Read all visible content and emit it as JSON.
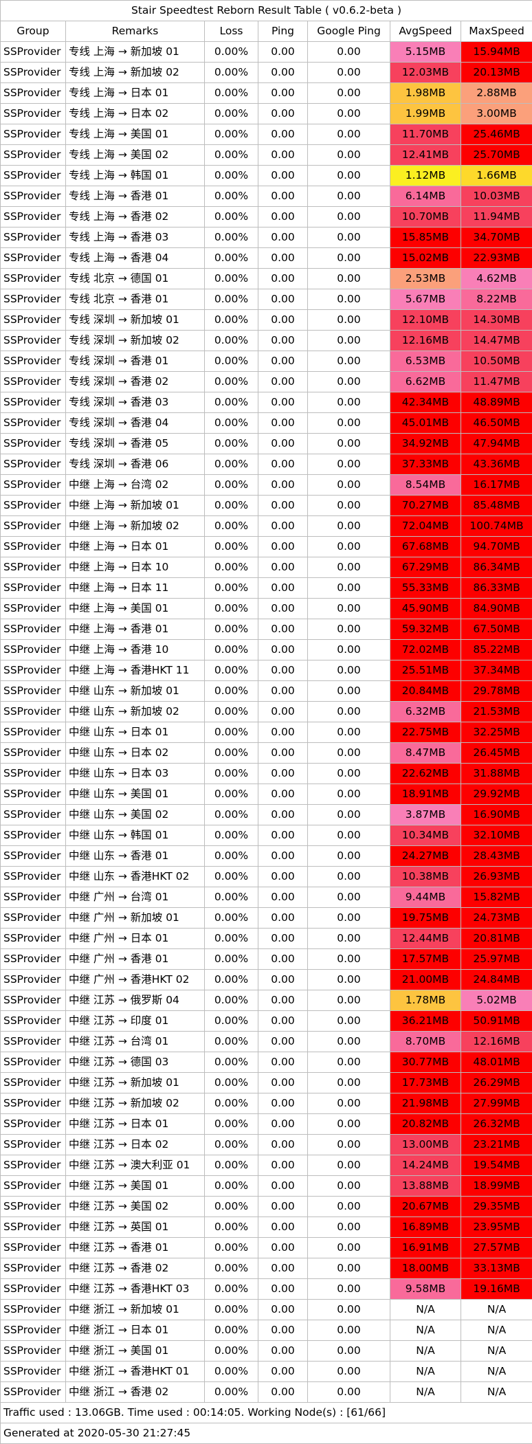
{
  "title": "Stair Speedtest Reborn Result Table ( v0.6.2-beta )",
  "headers": [
    "Group",
    "Remarks",
    "Loss",
    "Ping",
    "Google Ping",
    "AvgSpeed",
    "MaxSpeed"
  ],
  "rows": [
    {
      "group": "SSProvider",
      "remarks": "专线 上海 → 新加坡 01",
      "loss": "0.00%",
      "ping": "0.00",
      "gping": "0.00",
      "avg": "5.15MB",
      "max": "15.94MB",
      "avg_color": "#f97fb7",
      "max_color": "#fd0000"
    },
    {
      "group": "SSProvider",
      "remarks": "专线 上海 → 新加坡 02",
      "loss": "0.00%",
      "ping": "0.00",
      "gping": "0.00",
      "avg": "12.03MB",
      "max": "20.13MB",
      "avg_color": "#f7415d",
      "max_color": "#fd0000"
    },
    {
      "group": "SSProvider",
      "remarks": "专线 上海 → 日本 01",
      "loss": "0.00%",
      "ping": "0.00",
      "gping": "0.00",
      "avg": "1.98MB",
      "max": "2.88MB",
      "avg_color": "#fdc440",
      "max_color": "#fba07b"
    },
    {
      "group": "SSProvider",
      "remarks": "专线 上海 → 日本 02",
      "loss": "0.00%",
      "ping": "0.00",
      "gping": "0.00",
      "avg": "1.99MB",
      "max": "3.00MB",
      "avg_color": "#fdc440",
      "max_color": "#fba07b"
    },
    {
      "group": "SSProvider",
      "remarks": "专线 上海 → 美国 01",
      "loss": "0.00%",
      "ping": "0.00",
      "gping": "0.00",
      "avg": "11.70MB",
      "max": "25.46MB",
      "avg_color": "#f7415d",
      "max_color": "#fd0000"
    },
    {
      "group": "SSProvider",
      "remarks": "专线 上海 → 美国 02",
      "loss": "0.00%",
      "ping": "0.00",
      "gping": "0.00",
      "avg": "12.41MB",
      "max": "25.70MB",
      "avg_color": "#f7415d",
      "max_color": "#fd0000"
    },
    {
      "group": "SSProvider",
      "remarks": "专线 上海 → 韩国 01",
      "loss": "0.00%",
      "ping": "0.00",
      "gping": "0.00",
      "avg": "1.12MB",
      "max": "1.66MB",
      "avg_color": "#fbef21",
      "max_color": "#fdd92b"
    },
    {
      "group": "SSProvider",
      "remarks": "专线 上海 → 香港 01",
      "loss": "0.00%",
      "ping": "0.00",
      "gping": "0.00",
      "avg": "6.14MB",
      "max": "10.03MB",
      "avg_color": "#f96a9a",
      "max_color": "#f7415d"
    },
    {
      "group": "SSProvider",
      "remarks": "专线 上海 → 香港 02",
      "loss": "0.00%",
      "ping": "0.00",
      "gping": "0.00",
      "avg": "10.70MB",
      "max": "11.94MB",
      "avg_color": "#f7415d",
      "max_color": "#f7415d"
    },
    {
      "group": "SSProvider",
      "remarks": "专线 上海 → 香港 03",
      "loss": "0.00%",
      "ping": "0.00",
      "gping": "0.00",
      "avg": "15.85MB",
      "max": "34.70MB",
      "avg_color": "#fd0000",
      "max_color": "#fd0000"
    },
    {
      "group": "SSProvider",
      "remarks": "专线 上海 → 香港 04",
      "loss": "0.00%",
      "ping": "0.00",
      "gping": "0.00",
      "avg": "15.02MB",
      "max": "22.93MB",
      "avg_color": "#fd0000",
      "max_color": "#fd0000"
    },
    {
      "group": "SSProvider",
      "remarks": "专线 北京 → 德国 01",
      "loss": "0.00%",
      "ping": "0.00",
      "gping": "0.00",
      "avg": "2.53MB",
      "max": "4.62MB",
      "avg_color": "#fba07b",
      "max_color": "#f97fb7"
    },
    {
      "group": "SSProvider",
      "remarks": "专线 北京 → 香港 01",
      "loss": "0.00%",
      "ping": "0.00",
      "gping": "0.00",
      "avg": "5.67MB",
      "max": "8.22MB",
      "avg_color": "#f97fb7",
      "max_color": "#f96a9a"
    },
    {
      "group": "SSProvider",
      "remarks": "专线 深圳 → 新加坡 01",
      "loss": "0.00%",
      "ping": "0.00",
      "gping": "0.00",
      "avg": "12.10MB",
      "max": "14.30MB",
      "avg_color": "#f7415d",
      "max_color": "#f7415d"
    },
    {
      "group": "SSProvider",
      "remarks": "专线 深圳 → 新加坡 02",
      "loss": "0.00%",
      "ping": "0.00",
      "gping": "0.00",
      "avg": "12.16MB",
      "max": "14.47MB",
      "avg_color": "#f7415d",
      "max_color": "#f7415d"
    },
    {
      "group": "SSProvider",
      "remarks": "专线 深圳 → 香港 01",
      "loss": "0.00%",
      "ping": "0.00",
      "gping": "0.00",
      "avg": "6.53MB",
      "max": "10.50MB",
      "avg_color": "#f96a9a",
      "max_color": "#f7415d"
    },
    {
      "group": "SSProvider",
      "remarks": "专线 深圳 → 香港 02",
      "loss": "0.00%",
      "ping": "0.00",
      "gping": "0.00",
      "avg": "6.62MB",
      "max": "11.47MB",
      "avg_color": "#f96a9a",
      "max_color": "#f7415d"
    },
    {
      "group": "SSProvider",
      "remarks": "专线 深圳 → 香港 03",
      "loss": "0.00%",
      "ping": "0.00",
      "gping": "0.00",
      "avg": "42.34MB",
      "max": "48.89MB",
      "avg_color": "#fd0000",
      "max_color": "#fd0000"
    },
    {
      "group": "SSProvider",
      "remarks": "专线 深圳 → 香港 04",
      "loss": "0.00%",
      "ping": "0.00",
      "gping": "0.00",
      "avg": "45.01MB",
      "max": "46.50MB",
      "avg_color": "#fd0000",
      "max_color": "#fd0000"
    },
    {
      "group": "SSProvider",
      "remarks": "专线 深圳 → 香港 05",
      "loss": "0.00%",
      "ping": "0.00",
      "gping": "0.00",
      "avg": "34.92MB",
      "max": "47.94MB",
      "avg_color": "#fd0000",
      "max_color": "#fd0000"
    },
    {
      "group": "SSProvider",
      "remarks": "专线 深圳 → 香港 06",
      "loss": "0.00%",
      "ping": "0.00",
      "gping": "0.00",
      "avg": "37.33MB",
      "max": "43.36MB",
      "avg_color": "#fd0000",
      "max_color": "#fd0000"
    },
    {
      "group": "SSProvider",
      "remarks": "中继 上海 → 台湾 02",
      "loss": "0.00%",
      "ping": "0.00",
      "gping": "0.00",
      "avg": "8.54MB",
      "max": "16.17MB",
      "avg_color": "#f96a9a",
      "max_color": "#fd0000"
    },
    {
      "group": "SSProvider",
      "remarks": "中继 上海 → 新加坡 01",
      "loss": "0.00%",
      "ping": "0.00",
      "gping": "0.00",
      "avg": "70.27MB",
      "max": "85.48MB",
      "avg_color": "#fd0000",
      "max_color": "#fd0000"
    },
    {
      "group": "SSProvider",
      "remarks": "中继 上海 → 新加坡 02",
      "loss": "0.00%",
      "ping": "0.00",
      "gping": "0.00",
      "avg": "72.04MB",
      "max": "100.74MB",
      "avg_color": "#fd0000",
      "max_color": "#fd0000"
    },
    {
      "group": "SSProvider",
      "remarks": "中继 上海 → 日本 01",
      "loss": "0.00%",
      "ping": "0.00",
      "gping": "0.00",
      "avg": "67.68MB",
      "max": "94.70MB",
      "avg_color": "#fd0000",
      "max_color": "#fd0000"
    },
    {
      "group": "SSProvider",
      "remarks": "中继 上海 → 日本 10",
      "loss": "0.00%",
      "ping": "0.00",
      "gping": "0.00",
      "avg": "67.29MB",
      "max": "86.34MB",
      "avg_color": "#fd0000",
      "max_color": "#fd0000"
    },
    {
      "group": "SSProvider",
      "remarks": "中继 上海 → 日本 11",
      "loss": "0.00%",
      "ping": "0.00",
      "gping": "0.00",
      "avg": "55.33MB",
      "max": "86.33MB",
      "avg_color": "#fd0000",
      "max_color": "#fd0000"
    },
    {
      "group": "SSProvider",
      "remarks": "中继 上海 → 美国 01",
      "loss": "0.00%",
      "ping": "0.00",
      "gping": "0.00",
      "avg": "45.90MB",
      "max": "84.90MB",
      "avg_color": "#fd0000",
      "max_color": "#fd0000"
    },
    {
      "group": "SSProvider",
      "remarks": "中继 上海 → 香港 01",
      "loss": "0.00%",
      "ping": "0.00",
      "gping": "0.00",
      "avg": "59.32MB",
      "max": "67.50MB",
      "avg_color": "#fd0000",
      "max_color": "#fd0000"
    },
    {
      "group": "SSProvider",
      "remarks": "中继 上海 → 香港 10",
      "loss": "0.00%",
      "ping": "0.00",
      "gping": "0.00",
      "avg": "72.02MB",
      "max": "85.22MB",
      "avg_color": "#fd0000",
      "max_color": "#fd0000"
    },
    {
      "group": "SSProvider",
      "remarks": "中继 上海 → 香港HKT 11",
      "loss": "0.00%",
      "ping": "0.00",
      "gping": "0.00",
      "avg": "25.51MB",
      "max": "37.34MB",
      "avg_color": "#fd0000",
      "max_color": "#fd0000"
    },
    {
      "group": "SSProvider",
      "remarks": "中继 山东 → 新加坡 01",
      "loss": "0.00%",
      "ping": "0.00",
      "gping": "0.00",
      "avg": "20.84MB",
      "max": "29.78MB",
      "avg_color": "#fd0000",
      "max_color": "#fd0000"
    },
    {
      "group": "SSProvider",
      "remarks": "中继 山东 → 新加坡 02",
      "loss": "0.00%",
      "ping": "0.00",
      "gping": "0.00",
      "avg": "6.32MB",
      "max": "21.53MB",
      "avg_color": "#f96a9a",
      "max_color": "#fd0000"
    },
    {
      "group": "SSProvider",
      "remarks": "中继 山东 → 日本 01",
      "loss": "0.00%",
      "ping": "0.00",
      "gping": "0.00",
      "avg": "22.75MB",
      "max": "32.25MB",
      "avg_color": "#fd0000",
      "max_color": "#fd0000"
    },
    {
      "group": "SSProvider",
      "remarks": "中继 山东 → 日本 02",
      "loss": "0.00%",
      "ping": "0.00",
      "gping": "0.00",
      "avg": "8.47MB",
      "max": "26.45MB",
      "avg_color": "#f96a9a",
      "max_color": "#fd0000"
    },
    {
      "group": "SSProvider",
      "remarks": "中继 山东 → 日本 03",
      "loss": "0.00%",
      "ping": "0.00",
      "gping": "0.00",
      "avg": "22.62MB",
      "max": "31.88MB",
      "avg_color": "#fd0000",
      "max_color": "#fd0000"
    },
    {
      "group": "SSProvider",
      "remarks": "中继 山东 → 美国 01",
      "loss": "0.00%",
      "ping": "0.00",
      "gping": "0.00",
      "avg": "18.91MB",
      "max": "29.92MB",
      "avg_color": "#fd0000",
      "max_color": "#fd0000"
    },
    {
      "group": "SSProvider",
      "remarks": "中继 山东 → 美国 02",
      "loss": "0.00%",
      "ping": "0.00",
      "gping": "0.00",
      "avg": "3.87MB",
      "max": "16.90MB",
      "avg_color": "#f97fb7",
      "max_color": "#fd0000"
    },
    {
      "group": "SSProvider",
      "remarks": "中继 山东 → 韩国 01",
      "loss": "0.00%",
      "ping": "0.00",
      "gping": "0.00",
      "avg": "10.34MB",
      "max": "32.10MB",
      "avg_color": "#f7415d",
      "max_color": "#fd0000"
    },
    {
      "group": "SSProvider",
      "remarks": "中继 山东 → 香港 01",
      "loss": "0.00%",
      "ping": "0.00",
      "gping": "0.00",
      "avg": "24.27MB",
      "max": "28.43MB",
      "avg_color": "#fd0000",
      "max_color": "#fd0000"
    },
    {
      "group": "SSProvider",
      "remarks": "中继 山东 → 香港HKT 02",
      "loss": "0.00%",
      "ping": "0.00",
      "gping": "0.00",
      "avg": "10.38MB",
      "max": "26.93MB",
      "avg_color": "#f7415d",
      "max_color": "#fd0000"
    },
    {
      "group": "SSProvider",
      "remarks": "中继 广州 → 台湾 01",
      "loss": "0.00%",
      "ping": "0.00",
      "gping": "0.00",
      "avg": "9.44MB",
      "max": "15.82MB",
      "avg_color": "#f96a9a",
      "max_color": "#fd0000"
    },
    {
      "group": "SSProvider",
      "remarks": "中继 广州 → 新加坡 01",
      "loss": "0.00%",
      "ping": "0.00",
      "gping": "0.00",
      "avg": "19.75MB",
      "max": "24.73MB",
      "avg_color": "#fd0000",
      "max_color": "#fd0000"
    },
    {
      "group": "SSProvider",
      "remarks": "中继 广州 → 日本 01",
      "loss": "0.00%",
      "ping": "0.00",
      "gping": "0.00",
      "avg": "12.44MB",
      "max": "20.81MB",
      "avg_color": "#f7415d",
      "max_color": "#fd0000"
    },
    {
      "group": "SSProvider",
      "remarks": "中继 广州 → 香港 01",
      "loss": "0.00%",
      "ping": "0.00",
      "gping": "0.00",
      "avg": "17.57MB",
      "max": "25.97MB",
      "avg_color": "#fd0000",
      "max_color": "#fd0000"
    },
    {
      "group": "SSProvider",
      "remarks": "中继 广州 → 香港HKT 02",
      "loss": "0.00%",
      "ping": "0.00",
      "gping": "0.00",
      "avg": "21.00MB",
      "max": "24.84MB",
      "avg_color": "#fd0000",
      "max_color": "#fd0000"
    },
    {
      "group": "SSProvider",
      "remarks": "中继 江苏 → 俄罗斯 04",
      "loss": "0.00%",
      "ping": "0.00",
      "gping": "0.00",
      "avg": "1.78MB",
      "max": "5.02MB",
      "avg_color": "#fdc440",
      "max_color": "#f97fb7"
    },
    {
      "group": "SSProvider",
      "remarks": "中继 江苏 → 印度 01",
      "loss": "0.00%",
      "ping": "0.00",
      "gping": "0.00",
      "avg": "36.21MB",
      "max": "50.91MB",
      "avg_color": "#fd0000",
      "max_color": "#fd0000"
    },
    {
      "group": "SSProvider",
      "remarks": "中继 江苏 → 台湾 01",
      "loss": "0.00%",
      "ping": "0.00",
      "gping": "0.00",
      "avg": "8.70MB",
      "max": "12.16MB",
      "avg_color": "#f96a9a",
      "max_color": "#f7415d"
    },
    {
      "group": "SSProvider",
      "remarks": "中继 江苏 → 德国 03",
      "loss": "0.00%",
      "ping": "0.00",
      "gping": "0.00",
      "avg": "30.77MB",
      "max": "48.01MB",
      "avg_color": "#fd0000",
      "max_color": "#fd0000"
    },
    {
      "group": "SSProvider",
      "remarks": "中继 江苏 → 新加坡 01",
      "loss": "0.00%",
      "ping": "0.00",
      "gping": "0.00",
      "avg": "17.73MB",
      "max": "26.29MB",
      "avg_color": "#fd0000",
      "max_color": "#fd0000"
    },
    {
      "group": "SSProvider",
      "remarks": "中继 江苏 → 新加坡 02",
      "loss": "0.00%",
      "ping": "0.00",
      "gping": "0.00",
      "avg": "21.98MB",
      "max": "27.99MB",
      "avg_color": "#fd0000",
      "max_color": "#fd0000"
    },
    {
      "group": "SSProvider",
      "remarks": "中继 江苏 → 日本 01",
      "loss": "0.00%",
      "ping": "0.00",
      "gping": "0.00",
      "avg": "20.82MB",
      "max": "26.32MB",
      "avg_color": "#fd0000",
      "max_color": "#fd0000"
    },
    {
      "group": "SSProvider",
      "remarks": "中继 江苏 → 日本 02",
      "loss": "0.00%",
      "ping": "0.00",
      "gping": "0.00",
      "avg": "13.00MB",
      "max": "23.21MB",
      "avg_color": "#f7415d",
      "max_color": "#fd0000"
    },
    {
      "group": "SSProvider",
      "remarks": "中继 江苏 → 澳大利亚 01",
      "loss": "0.00%",
      "ping": "0.00",
      "gping": "0.00",
      "avg": "14.24MB",
      "max": "19.54MB",
      "avg_color": "#f7415d",
      "max_color": "#fd0000"
    },
    {
      "group": "SSProvider",
      "remarks": "中继 江苏 → 美国 01",
      "loss": "0.00%",
      "ping": "0.00",
      "gping": "0.00",
      "avg": "13.88MB",
      "max": "18.99MB",
      "avg_color": "#f7415d",
      "max_color": "#fd0000"
    },
    {
      "group": "SSProvider",
      "remarks": "中继 江苏 → 美国 02",
      "loss": "0.00%",
      "ping": "0.00",
      "gping": "0.00",
      "avg": "20.67MB",
      "max": "29.35MB",
      "avg_color": "#fd0000",
      "max_color": "#fd0000"
    },
    {
      "group": "SSProvider",
      "remarks": "中继 江苏 → 英国 01",
      "loss": "0.00%",
      "ping": "0.00",
      "gping": "0.00",
      "avg": "16.89MB",
      "max": "23.95MB",
      "avg_color": "#fd0000",
      "max_color": "#fd0000"
    },
    {
      "group": "SSProvider",
      "remarks": "中继 江苏 → 香港 01",
      "loss": "0.00%",
      "ping": "0.00",
      "gping": "0.00",
      "avg": "16.91MB",
      "max": "27.57MB",
      "avg_color": "#fd0000",
      "max_color": "#fd0000"
    },
    {
      "group": "SSProvider",
      "remarks": "中继 江苏 → 香港 02",
      "loss": "0.00%",
      "ping": "0.00",
      "gping": "0.00",
      "avg": "18.00MB",
      "max": "33.13MB",
      "avg_color": "#fd0000",
      "max_color": "#fd0000"
    },
    {
      "group": "SSProvider",
      "remarks": "中继 江苏 → 香港HKT 03",
      "loss": "0.00%",
      "ping": "0.00",
      "gping": "0.00",
      "avg": "9.58MB",
      "max": "19.16MB",
      "avg_color": "#f96a9a",
      "max_color": "#fd0000"
    },
    {
      "group": "SSProvider",
      "remarks": "中继 浙江 → 新加坡 01",
      "loss": "0.00%",
      "ping": "0.00",
      "gping": "0.00",
      "avg": "N/A",
      "max": "N/A",
      "avg_color": "#ffffff",
      "max_color": "#ffffff"
    },
    {
      "group": "SSProvider",
      "remarks": "中继 浙江 → 日本 01",
      "loss": "0.00%",
      "ping": "0.00",
      "gping": "0.00",
      "avg": "N/A",
      "max": "N/A",
      "avg_color": "#ffffff",
      "max_color": "#ffffff"
    },
    {
      "group": "SSProvider",
      "remarks": "中继 浙江 → 美国 01",
      "loss": "0.00%",
      "ping": "0.00",
      "gping": "0.00",
      "avg": "N/A",
      "max": "N/A",
      "avg_color": "#ffffff",
      "max_color": "#ffffff"
    },
    {
      "group": "SSProvider",
      "remarks": "中继 浙江 → 香港HKT 01",
      "loss": "0.00%",
      "ping": "0.00",
      "gping": "0.00",
      "avg": "N/A",
      "max": "N/A",
      "avg_color": "#ffffff",
      "max_color": "#ffffff"
    },
    {
      "group": "SSProvider",
      "remarks": "中继 浙江 → 香港 02",
      "loss": "0.00%",
      "ping": "0.00",
      "gping": "0.00",
      "avg": "N/A",
      "max": "N/A",
      "avg_color": "#ffffff",
      "max_color": "#ffffff"
    }
  ],
  "footer": {
    "traffic": "Traffic used : 13.06GB. Time used : 00:14:05. Working Node(s) : [61/66]",
    "generated": "Generated at 2020-05-30 21:27:45"
  }
}
